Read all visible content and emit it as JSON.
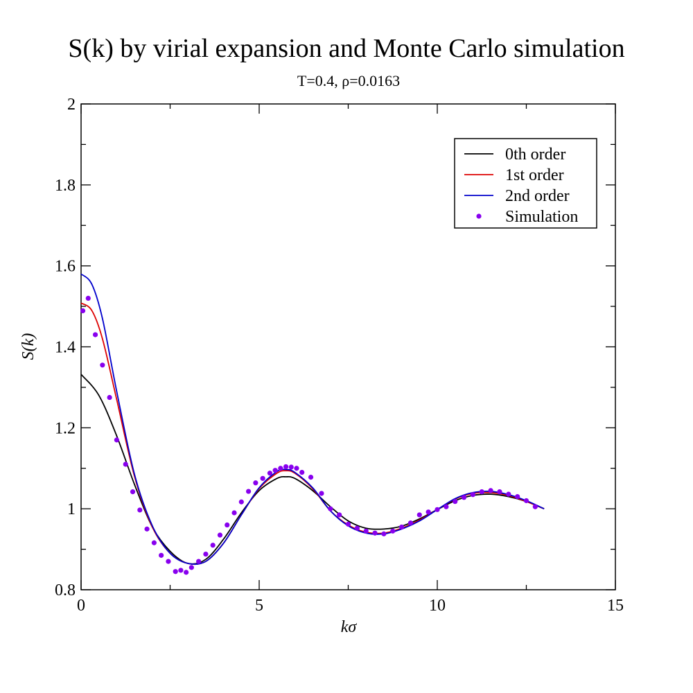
{
  "chart_data": {
    "type": "line",
    "title": "S(k) by virial expansion and Monte Carlo simulation",
    "subtitle": "T=0.4, ρ=0.0163",
    "xlabel": "kσ",
    "ylabel": "S(k)",
    "xlim": [
      0,
      15
    ],
    "ylim": [
      0.8,
      2.0
    ],
    "x_ticks": [
      0,
      5,
      10,
      15
    ],
    "x_tick_labels": [
      "0",
      "5",
      "10",
      "15"
    ],
    "y_ticks": [
      0.8,
      1.0,
      1.2,
      1.4,
      1.6,
      1.8,
      2.0
    ],
    "y_tick_labels": [
      "0.8",
      "1",
      "1.2",
      "1.4",
      "1.6",
      "1.8",
      "2"
    ],
    "grid": false,
    "legend_position": "top-right",
    "series": [
      {
        "name": "0th order",
        "style": "line",
        "color": "#000000",
        "x": [
          0,
          0.5,
          1.0,
          1.5,
          2.0,
          2.5,
          3.0,
          3.5,
          4.0,
          4.5,
          5.0,
          5.5,
          5.75,
          6.0,
          6.5,
          7.0,
          7.5,
          8.0,
          8.5,
          9.0,
          9.5,
          10.0,
          10.5,
          11.0,
          11.5,
          12.0,
          12.5,
          13.0
        ],
        "y": [
          1.332,
          1.28,
          1.18,
          1.06,
          0.955,
          0.895,
          0.865,
          0.875,
          0.925,
          0.99,
          1.045,
          1.075,
          1.079,
          1.075,
          1.045,
          1.005,
          0.97,
          0.952,
          0.95,
          0.957,
          0.975,
          0.998,
          1.02,
          1.033,
          1.036,
          1.03,
          1.018,
          1.0
        ]
      },
      {
        "name": "1st order",
        "style": "line",
        "color": "#dd0000",
        "x": [
          0,
          0.3,
          0.6,
          1.0,
          1.5,
          2.0,
          2.5,
          3.0,
          3.5,
          4.0,
          4.5,
          5.0,
          5.5,
          5.75,
          6.0,
          6.5,
          7.0,
          7.5,
          8.0,
          8.5,
          9.0,
          9.5,
          10.0,
          10.5,
          11.0,
          11.5,
          12.0,
          12.5,
          13.0
        ],
        "y": [
          1.508,
          1.49,
          1.42,
          1.27,
          1.08,
          0.955,
          0.89,
          0.865,
          0.87,
          0.915,
          0.985,
          1.05,
          1.088,
          1.094,
          1.088,
          1.05,
          0.995,
          0.96,
          0.942,
          0.94,
          0.952,
          0.972,
          0.998,
          1.024,
          1.038,
          1.04,
          1.033,
          1.018,
          1.0
        ]
      },
      {
        "name": "2nd order",
        "style": "line",
        "color": "#0000cc",
        "x": [
          0,
          0.3,
          0.6,
          1.0,
          1.5,
          2.0,
          2.5,
          3.0,
          3.5,
          4.0,
          4.5,
          5.0,
          5.5,
          5.75,
          6.0,
          6.5,
          7.0,
          7.5,
          8.0,
          8.5,
          9.0,
          9.5,
          10.0,
          10.5,
          11.0,
          11.5,
          12.0,
          12.5,
          13.0
        ],
        "y": [
          1.58,
          1.555,
          1.47,
          1.29,
          1.085,
          0.958,
          0.89,
          0.865,
          0.87,
          0.915,
          0.985,
          1.052,
          1.092,
          1.097,
          1.09,
          1.052,
          0.995,
          0.958,
          0.94,
          0.938,
          0.95,
          0.97,
          0.998,
          1.025,
          1.04,
          1.043,
          1.035,
          1.02,
          1.0
        ]
      },
      {
        "name": "Simulation",
        "style": "points",
        "color": "#8800ee",
        "x": [
          0.05,
          0.2,
          0.4,
          0.6,
          0.8,
          1.0,
          1.25,
          1.45,
          1.65,
          1.85,
          2.05,
          2.25,
          2.45,
          2.65,
          2.8,
          2.95,
          3.1,
          3.3,
          3.5,
          3.7,
          3.9,
          4.1,
          4.3,
          4.5,
          4.7,
          4.9,
          5.1,
          5.3,
          5.45,
          5.6,
          5.75,
          5.9,
          6.05,
          6.2,
          6.45,
          6.75,
          7.0,
          7.25,
          7.5,
          7.75,
          8.0,
          8.25,
          8.5,
          8.75,
          9.0,
          9.25,
          9.5,
          9.75,
          10.0,
          10.25,
          10.5,
          10.75,
          11.0,
          11.25,
          11.5,
          11.75,
          12.0,
          12.25,
          12.5,
          12.75
        ],
        "y": [
          1.489,
          1.52,
          1.43,
          1.355,
          1.275,
          1.17,
          1.11,
          1.042,
          0.997,
          0.95,
          0.916,
          0.885,
          0.87,
          0.845,
          0.848,
          0.843,
          0.855,
          0.87,
          0.888,
          0.91,
          0.935,
          0.96,
          0.99,
          1.017,
          1.043,
          1.064,
          1.075,
          1.088,
          1.095,
          1.1,
          1.104,
          1.103,
          1.1,
          1.09,
          1.078,
          1.038,
          1.0,
          0.985,
          0.962,
          0.952,
          0.945,
          0.94,
          0.938,
          0.945,
          0.955,
          0.965,
          0.985,
          0.992,
          0.998,
          1.005,
          1.018,
          1.028,
          1.035,
          1.042,
          1.045,
          1.042,
          1.036,
          1.03,
          1.02,
          1.005
        ]
      }
    ]
  }
}
